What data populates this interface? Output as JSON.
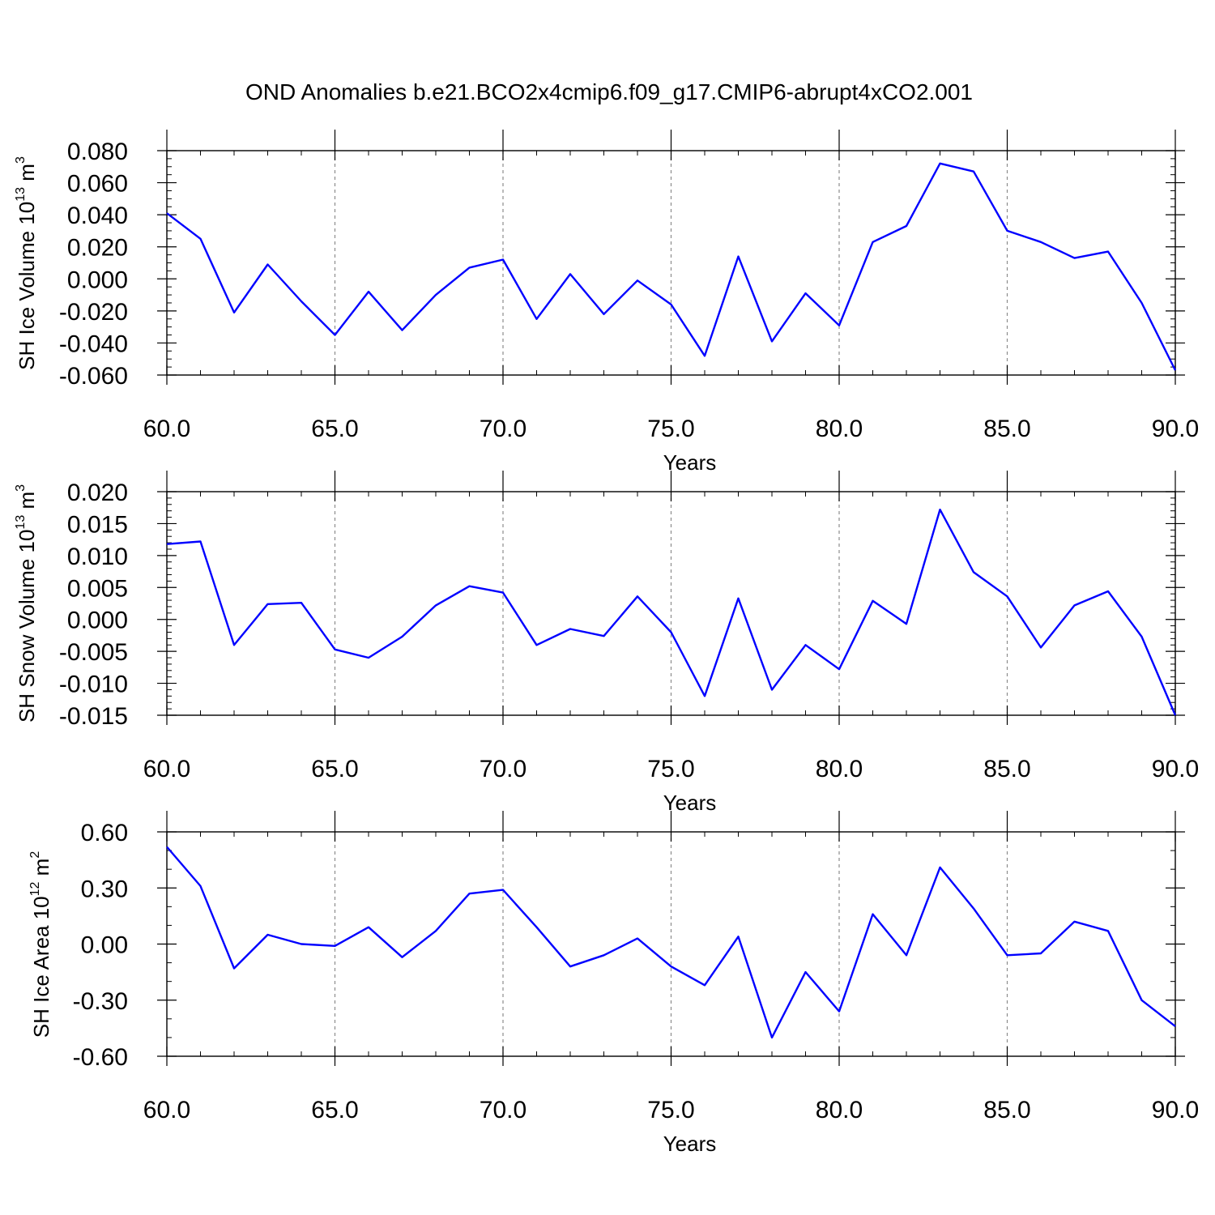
{
  "figure_title": "OND Anomalies b.e21.BCO2x4cmip6.f09_g17.CMIP6-abrupt4xCO2.001",
  "colors": {
    "series": "#0000ff",
    "axes": "#000000",
    "grid": "#8c8c8c"
  },
  "chart_data": [
    {
      "type": "line",
      "title": "",
      "xlabel": "Years",
      "ylabel_base": "SH Ice Volume 10",
      "ylabel_exp": "13",
      "ylabel_unit": " m",
      "ylabel_unit_exp": "3",
      "xlim": [
        60,
        90
      ],
      "ylim": [
        -0.06,
        0.08
      ],
      "xticks": [
        60,
        65,
        70,
        75,
        80,
        85,
        90
      ],
      "xtick_labels": [
        "60.0",
        "65.0",
        "70.0",
        "75.0",
        "80.0",
        "85.0",
        "90.0"
      ],
      "yticks": [
        -0.06,
        -0.04,
        -0.02,
        0.0,
        0.02,
        0.04,
        0.06,
        0.08
      ],
      "ytick_labels": [
        "-0.060",
        "-0.040",
        "-0.020",
        "0.000",
        "0.020",
        "0.040",
        "0.060",
        "0.080"
      ],
      "x_minor_step": 1,
      "y_minor_step": 0.005,
      "grid": "vertical dashed",
      "series": [
        {
          "x": [
            60,
            61,
            62,
            63,
            64,
            65,
            66,
            67,
            68,
            69,
            70,
            71,
            72,
            73,
            74,
            75,
            76,
            77,
            78,
            79,
            80,
            81,
            82,
            83,
            84,
            85,
            86,
            87,
            88,
            89,
            90
          ],
          "y": [
            0.041,
            0.025,
            -0.021,
            0.009,
            -0.014,
            -0.035,
            -0.008,
            -0.032,
            -0.01,
            0.007,
            0.012,
            -0.025,
            0.003,
            -0.022,
            -0.001,
            -0.016,
            -0.048,
            0.014,
            -0.039,
            -0.009,
            -0.029,
            0.023,
            0.033,
            0.072,
            0.067,
            0.03,
            0.023,
            0.013,
            0.017,
            -0.015,
            -0.057
          ]
        }
      ]
    },
    {
      "type": "line",
      "title": "",
      "xlabel": "Years",
      "ylabel_base": "SH Snow Volume 10",
      "ylabel_exp": "13",
      "ylabel_unit": " m",
      "ylabel_unit_exp": "3",
      "xlim": [
        60,
        90
      ],
      "ylim": [
        -0.015,
        0.02
      ],
      "xticks": [
        60,
        65,
        70,
        75,
        80,
        85,
        90
      ],
      "xtick_labels": [
        "60.0",
        "65.0",
        "70.0",
        "75.0",
        "80.0",
        "85.0",
        "90.0"
      ],
      "yticks": [
        -0.015,
        -0.01,
        -0.005,
        0.0,
        0.005,
        0.01,
        0.015,
        0.02
      ],
      "ytick_labels": [
        "-0.015",
        "-0.010",
        "-0.005",
        "0.000",
        "0.005",
        "0.010",
        "0.015",
        "0.020"
      ],
      "x_minor_step": 1,
      "y_minor_step": 0.001,
      "grid": "vertical dashed",
      "series": [
        {
          "x": [
            60,
            61,
            62,
            63,
            64,
            65,
            66,
            67,
            68,
            69,
            70,
            71,
            72,
            73,
            74,
            75,
            76,
            77,
            78,
            79,
            80,
            81,
            82,
            83,
            84,
            85,
            86,
            87,
            88,
            89,
            90
          ],
          "y": [
            0.0118,
            0.0122,
            -0.004,
            0.0024,
            0.0026,
            -0.0047,
            -0.006,
            -0.0027,
            0.0022,
            0.0052,
            0.0042,
            -0.004,
            -0.0015,
            -0.0026,
            0.0036,
            -0.002,
            -0.012,
            0.0033,
            -0.011,
            -0.004,
            -0.0078,
            0.0029,
            -0.0007,
            0.0172,
            0.0074,
            0.0036,
            -0.0044,
            0.0022,
            0.0044,
            -0.0027,
            -0.015
          ]
        }
      ]
    },
    {
      "type": "line",
      "title": "",
      "xlabel": "Years",
      "ylabel_base": "SH Ice Area 10",
      "ylabel_exp": "12",
      "ylabel_unit": " m",
      "ylabel_unit_exp": "2",
      "xlim": [
        60,
        90
      ],
      "ylim": [
        -0.6,
        0.6
      ],
      "xticks": [
        60,
        65,
        70,
        75,
        80,
        85,
        90
      ],
      "xtick_labels": [
        "60.0",
        "65.0",
        "70.0",
        "75.0",
        "80.0",
        "85.0",
        "90.0"
      ],
      "yticks": [
        -0.6,
        -0.3,
        0.0,
        0.3,
        0.6
      ],
      "ytick_labels": [
        "-0.60",
        "-0.30",
        "0.00",
        "0.30",
        "0.60"
      ],
      "x_minor_step": 1,
      "y_minor_step": 0.1,
      "grid": "vertical dashed",
      "series": [
        {
          "x": [
            60,
            61,
            62,
            63,
            64,
            65,
            66,
            67,
            68,
            69,
            70,
            71,
            72,
            73,
            74,
            75,
            76,
            77,
            78,
            79,
            80,
            81,
            82,
            83,
            84,
            85,
            86,
            87,
            88,
            89,
            90
          ],
          "y": [
            0.52,
            0.31,
            -0.13,
            0.05,
            0.0,
            -0.01,
            0.09,
            -0.07,
            0.07,
            0.27,
            0.29,
            0.09,
            -0.12,
            -0.06,
            0.03,
            -0.12,
            -0.22,
            0.04,
            -0.5,
            -0.15,
            -0.36,
            0.16,
            -0.06,
            0.41,
            0.19,
            -0.06,
            -0.05,
            0.12,
            0.07,
            -0.3,
            -0.44
          ]
        }
      ]
    }
  ]
}
